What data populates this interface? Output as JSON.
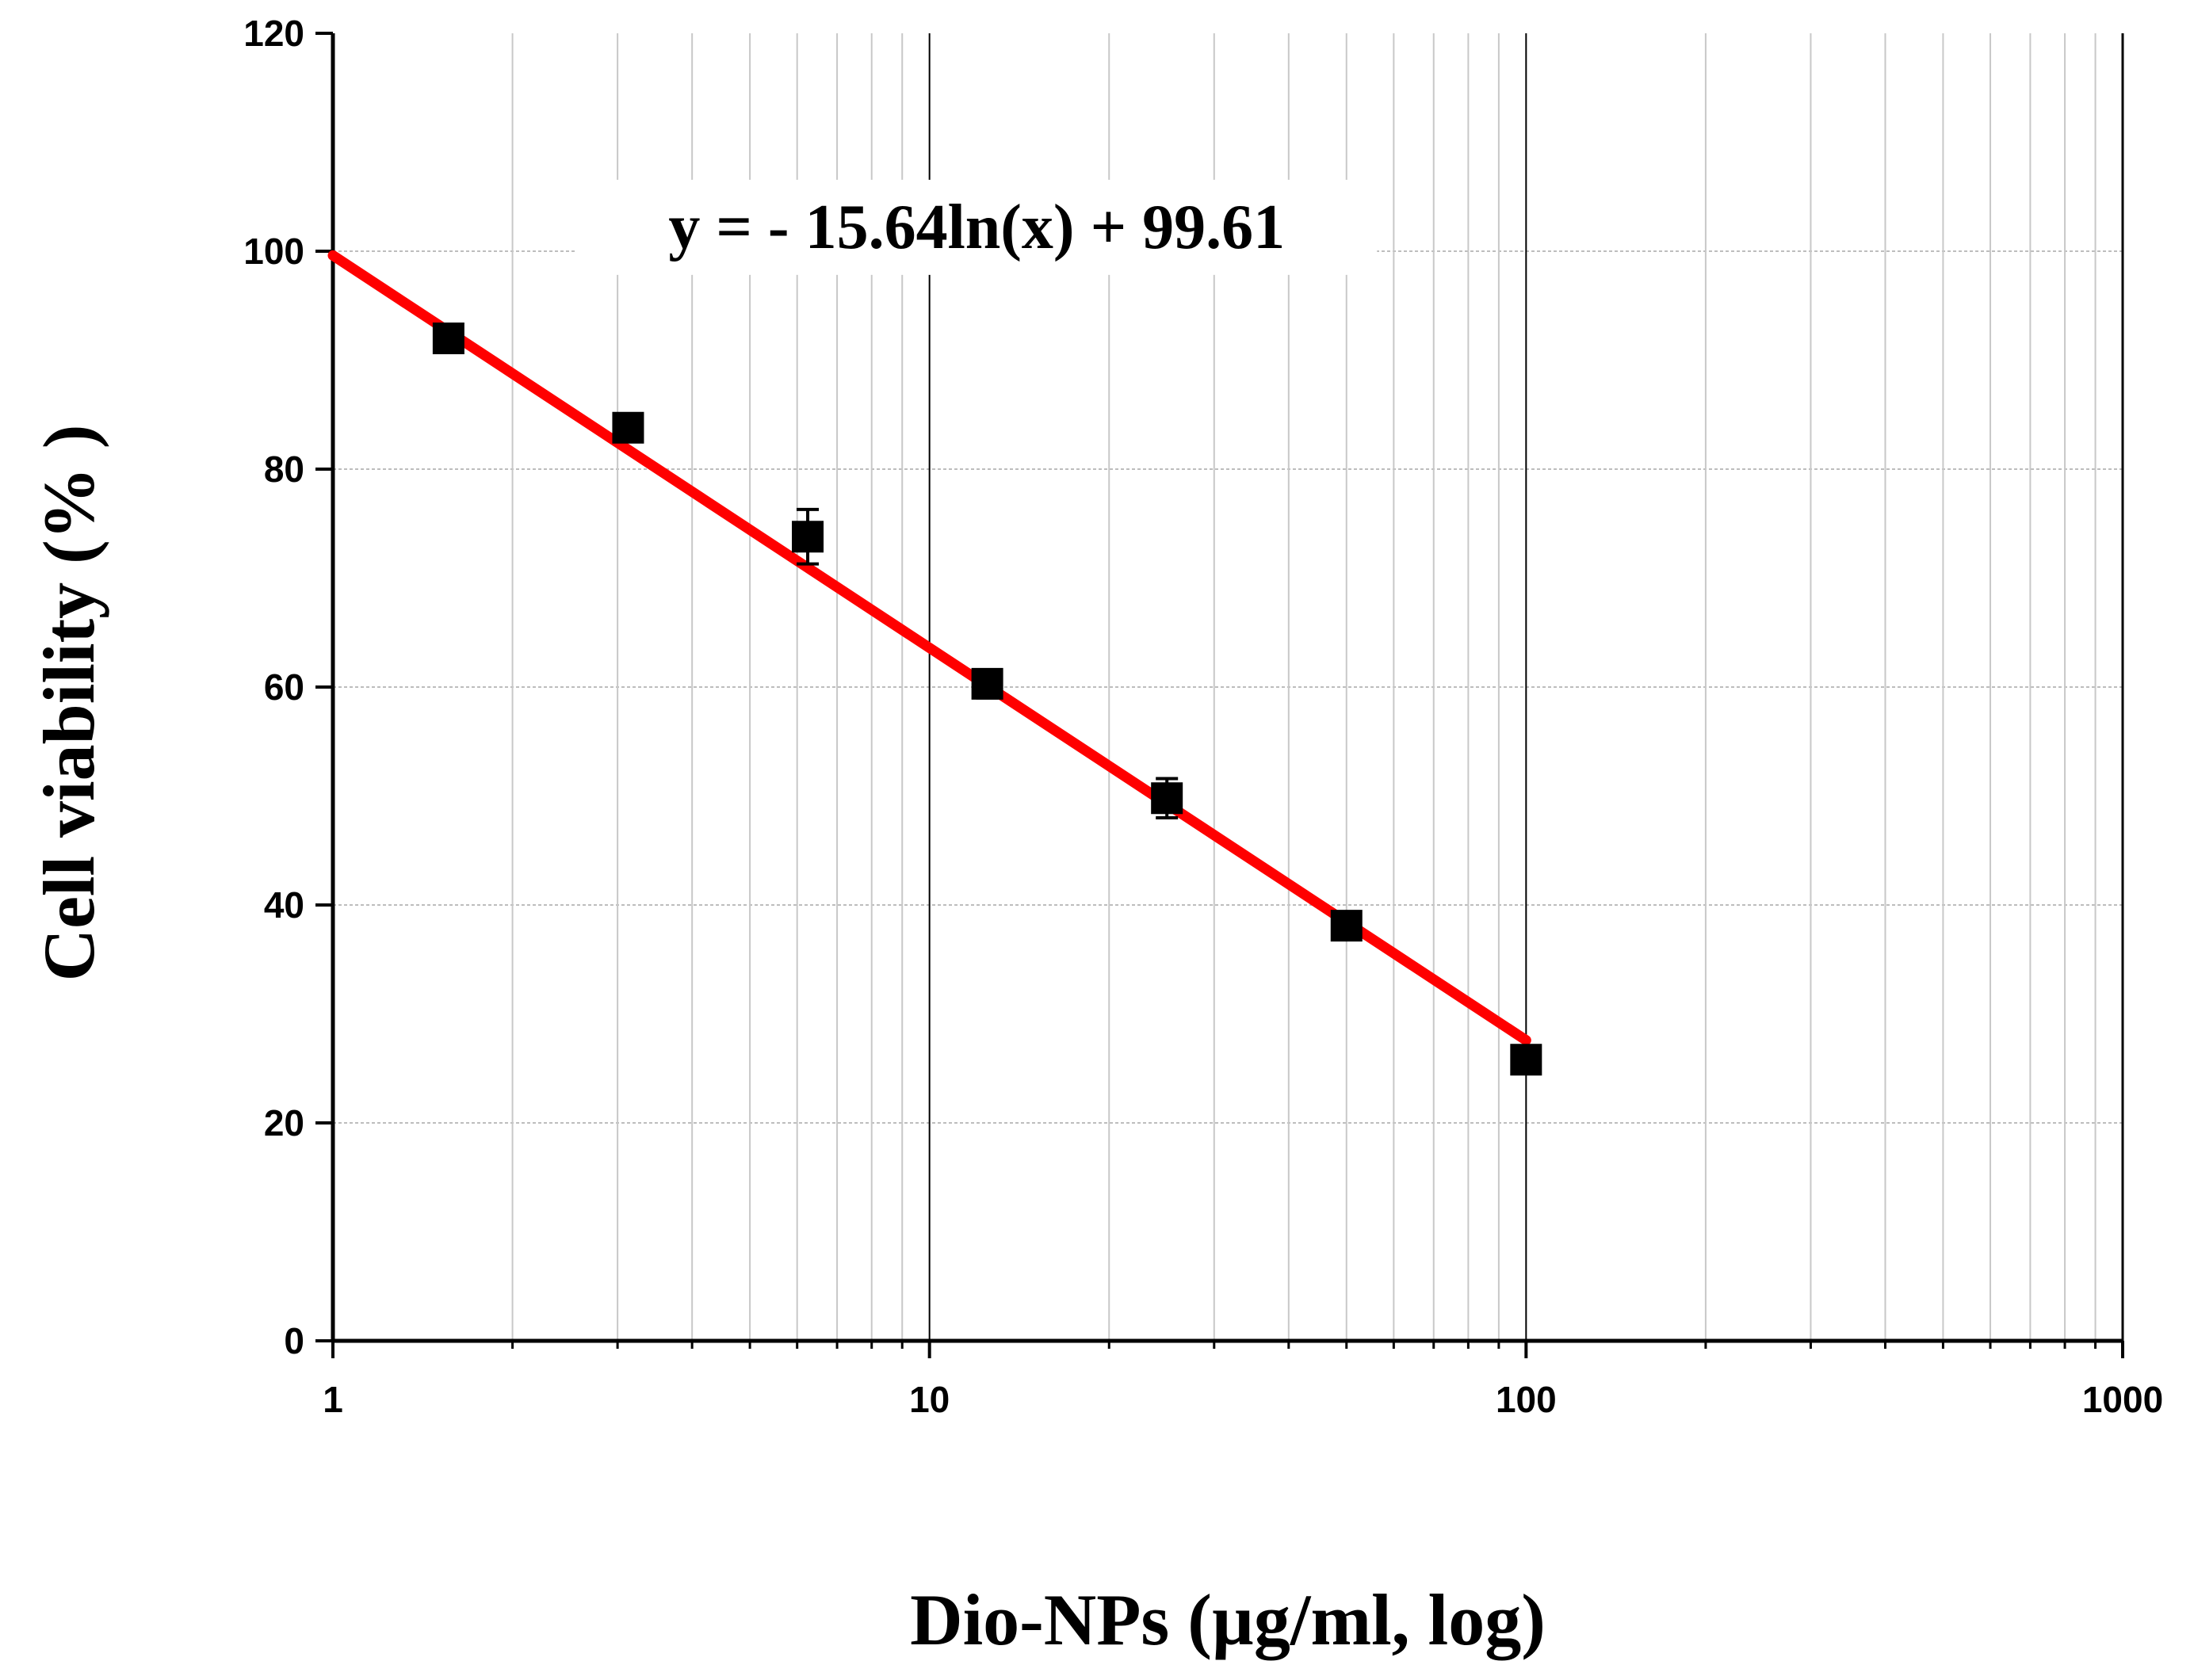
{
  "chart_data": {
    "type": "scatter",
    "title": "",
    "xlabel": "Dio-NPs (µg/ml, log)",
    "ylabel": "Cell viability (% )",
    "xscale": "log",
    "xlim": [
      1,
      1000
    ],
    "ylim": [
      0,
      120
    ],
    "xticks": [
      "1",
      "10",
      "100",
      "1000"
    ],
    "yticks": [
      "0",
      "20",
      "40",
      "60",
      "80",
      "100",
      "120"
    ],
    "grid": true,
    "series": [
      {
        "name": "Cell viability",
        "marker": "square",
        "color": "#000000",
        "x": [
          1.5625,
          3.125,
          6.25,
          12.5,
          25,
          50,
          100
        ],
        "y": [
          92.0,
          83.8,
          73.8,
          60.3,
          49.8,
          38.1,
          25.8
        ],
        "error": [
          0.8,
          1.2,
          2.5,
          1.3,
          1.8,
          0.8,
          0.6
        ]
      }
    ],
    "trendline": {
      "name": "Logarithmic fit",
      "color": "#ff0000",
      "a": -15.64,
      "b": 99.61,
      "x_range": [
        1,
        100
      ],
      "equation": "y = - 15.64ln(x) + 99.61"
    }
  }
}
